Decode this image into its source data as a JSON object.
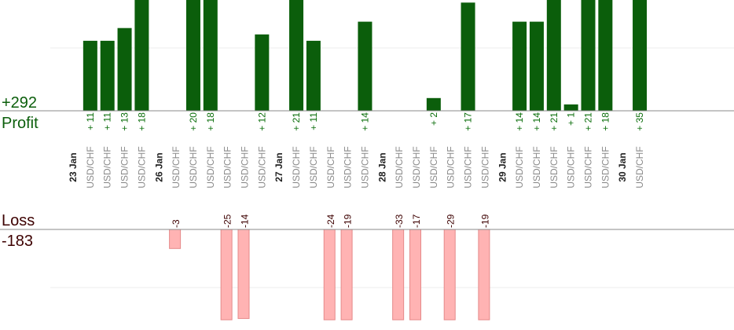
{
  "chart_data": {
    "type": "bar",
    "profit": {
      "label": "Profit",
      "total": "+292",
      "color": "#0b5e0b"
    },
    "loss": {
      "label": "Loss",
      "total": "-183",
      "color": "#ffb3b3"
    },
    "slots": [
      {
        "date": "23 Jan"
      },
      {
        "instrument": "USD/CHF",
        "value": 11,
        "label": "+ 11"
      },
      {
        "instrument": "USD/CHF",
        "value": 11,
        "label": "+ 11"
      },
      {
        "instrument": "USD/CHF",
        "value": 13,
        "label": "+ 13"
      },
      {
        "instrument": "USD/CHF",
        "value": 18,
        "label": "+ 18"
      },
      {
        "date": "26 Jan"
      },
      {
        "instrument": "USD/CHF",
        "value": -3,
        "label": "-3"
      },
      {
        "instrument": "USD/CHF",
        "value": 20,
        "label": "+ 20"
      },
      {
        "instrument": "USD/CHF",
        "value": 18,
        "label": "+ 18"
      },
      {
        "instrument": "USD/CHF",
        "value": -25,
        "label": "-25"
      },
      {
        "instrument": "USD/CHF",
        "value": -14,
        "label": "-14"
      },
      {
        "instrument": "USD/CHF",
        "value": 12,
        "label": "+ 12"
      },
      {
        "date": "27 Jan"
      },
      {
        "instrument": "USD/CHF",
        "value": 21,
        "label": "+ 21"
      },
      {
        "instrument": "USD/CHF",
        "value": 11,
        "label": "+ 11"
      },
      {
        "instrument": "USD/CHF",
        "value": -24,
        "label": "-24"
      },
      {
        "instrument": "USD/CHF",
        "value": -19,
        "label": "-19"
      },
      {
        "instrument": "USD/CHF",
        "value": 14,
        "label": "+ 14"
      },
      {
        "date": "28 Jan"
      },
      {
        "instrument": "USD/CHF",
        "value": -33,
        "label": "-33"
      },
      {
        "instrument": "USD/CHF",
        "value": -17,
        "label": "-17"
      },
      {
        "instrument": "USD/CHF",
        "value": 2,
        "label": "+ 2"
      },
      {
        "instrument": "USD/CHF",
        "value": -29,
        "label": "-29"
      },
      {
        "instrument": "USD/CHF",
        "value": 17,
        "label": "+ 17"
      },
      {
        "instrument": "USD/CHF",
        "value": -19,
        "label": "-19"
      },
      {
        "date": "29 Jan"
      },
      {
        "instrument": "USD/CHF",
        "value": 14,
        "label": "+ 14"
      },
      {
        "instrument": "USD/CHF",
        "value": 14,
        "label": "+ 14"
      },
      {
        "instrument": "USD/CHF",
        "value": 21,
        "label": "+ 21"
      },
      {
        "instrument": "USD/CHF",
        "value": 1,
        "label": "+ 1"
      },
      {
        "instrument": "USD/CHF",
        "value": 21,
        "label": "+ 21"
      },
      {
        "instrument": "USD/CHF",
        "value": 18,
        "label": "+ 18"
      },
      {
        "date": "30 Jan"
      },
      {
        "instrument": "USD/CHF",
        "value": 35,
        "label": "+ 35"
      }
    ],
    "grid": true
  }
}
